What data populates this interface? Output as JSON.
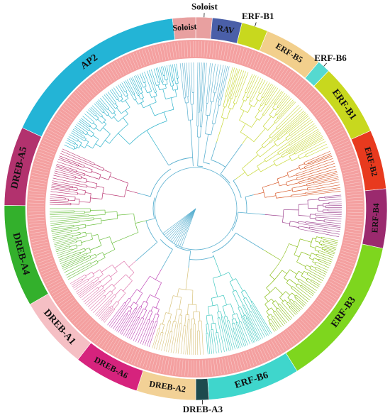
{
  "figure": {
    "type": "circular-phylogenetic-tree",
    "subfamilies": [
      {
        "label": "Soloist",
        "color": "#e8a0a0",
        "start": 0,
        "end": 5,
        "outside": true
      },
      {
        "label": "RAV",
        "color": "#4a5fa8",
        "start": 5,
        "end": 14,
        "outside": false
      },
      {
        "label": "ERF-B1",
        "color": "#c8d81e",
        "start": 14,
        "end": 22,
        "outside": true
      },
      {
        "label": "ERF-B5",
        "color": "#f2cf8c",
        "start": 22,
        "end": 40,
        "outside": false
      },
      {
        "label": "ERF-B6",
        "color": "#55d9d0",
        "start": 40,
        "end": 44,
        "outside": true
      },
      {
        "label": "ERF-B1",
        "color": "#c8d81e",
        "start": 44,
        "end": 66,
        "outside": false
      },
      {
        "label": "ERF-B2",
        "color": "#e83a1e",
        "start": 66,
        "end": 84,
        "outside": false
      },
      {
        "label": "ERF-B4",
        "color": "#9b2a6e",
        "start": 84,
        "end": 102,
        "outside": false
      },
      {
        "label": "ERF-B3",
        "color": "#7ed61e",
        "start": 102,
        "end": 148,
        "outside": false
      },
      {
        "label": "ERF-B6",
        "color": "#3fd6cc",
        "start": 148,
        "end": 176,
        "outside": false
      },
      {
        "label": "DREB-A3",
        "color": "#1d4a4e",
        "start": 176,
        "end": 180,
        "outside": true
      },
      {
        "label": "DREB-A2",
        "color": "#f2d196",
        "start": 180,
        "end": 198,
        "outside": false
      },
      {
        "label": "DREB-A6",
        "color": "#d6237d",
        "start": 198,
        "end": 218,
        "outside": false
      },
      {
        "label": "DREB-A1",
        "color": "#f5bfc4",
        "start": 218,
        "end": 240,
        "outside": false
      },
      {
        "label": "DREB-A4",
        "color": "#33b02c",
        "start": 240,
        "end": 271,
        "outside": false
      },
      {
        "label": "DREB-A5",
        "color": "#b2326e",
        "start": 271,
        "end": 295,
        "outside": false
      },
      {
        "label": "AP2",
        "color": "#23b4d6",
        "start": 295,
        "end": 353,
        "outside": false
      },
      {
        "label": "Soloist",
        "color": "#e8a0a0",
        "start": 353,
        "end": 360,
        "outside": false
      }
    ],
    "clade_colors": {
      "ap2": "#30b4cc",
      "erf_b1": "#c8d838",
      "erf_b2": "#d85a2a",
      "erf_b4": "#9b3f8c",
      "erf_b3": "#8bbf1a",
      "erf_b6": "#40c8c0",
      "dreb_a2": "#d8c27a",
      "dreb_a6": "#c04ab8",
      "dreb_a1": "#e07bb0",
      "dreb_a4": "#6cc040",
      "dreb_a5": "#b8306e",
      "backbone": "#5ab0d0",
      "leaf_label_band": "#f08080"
    }
  }
}
